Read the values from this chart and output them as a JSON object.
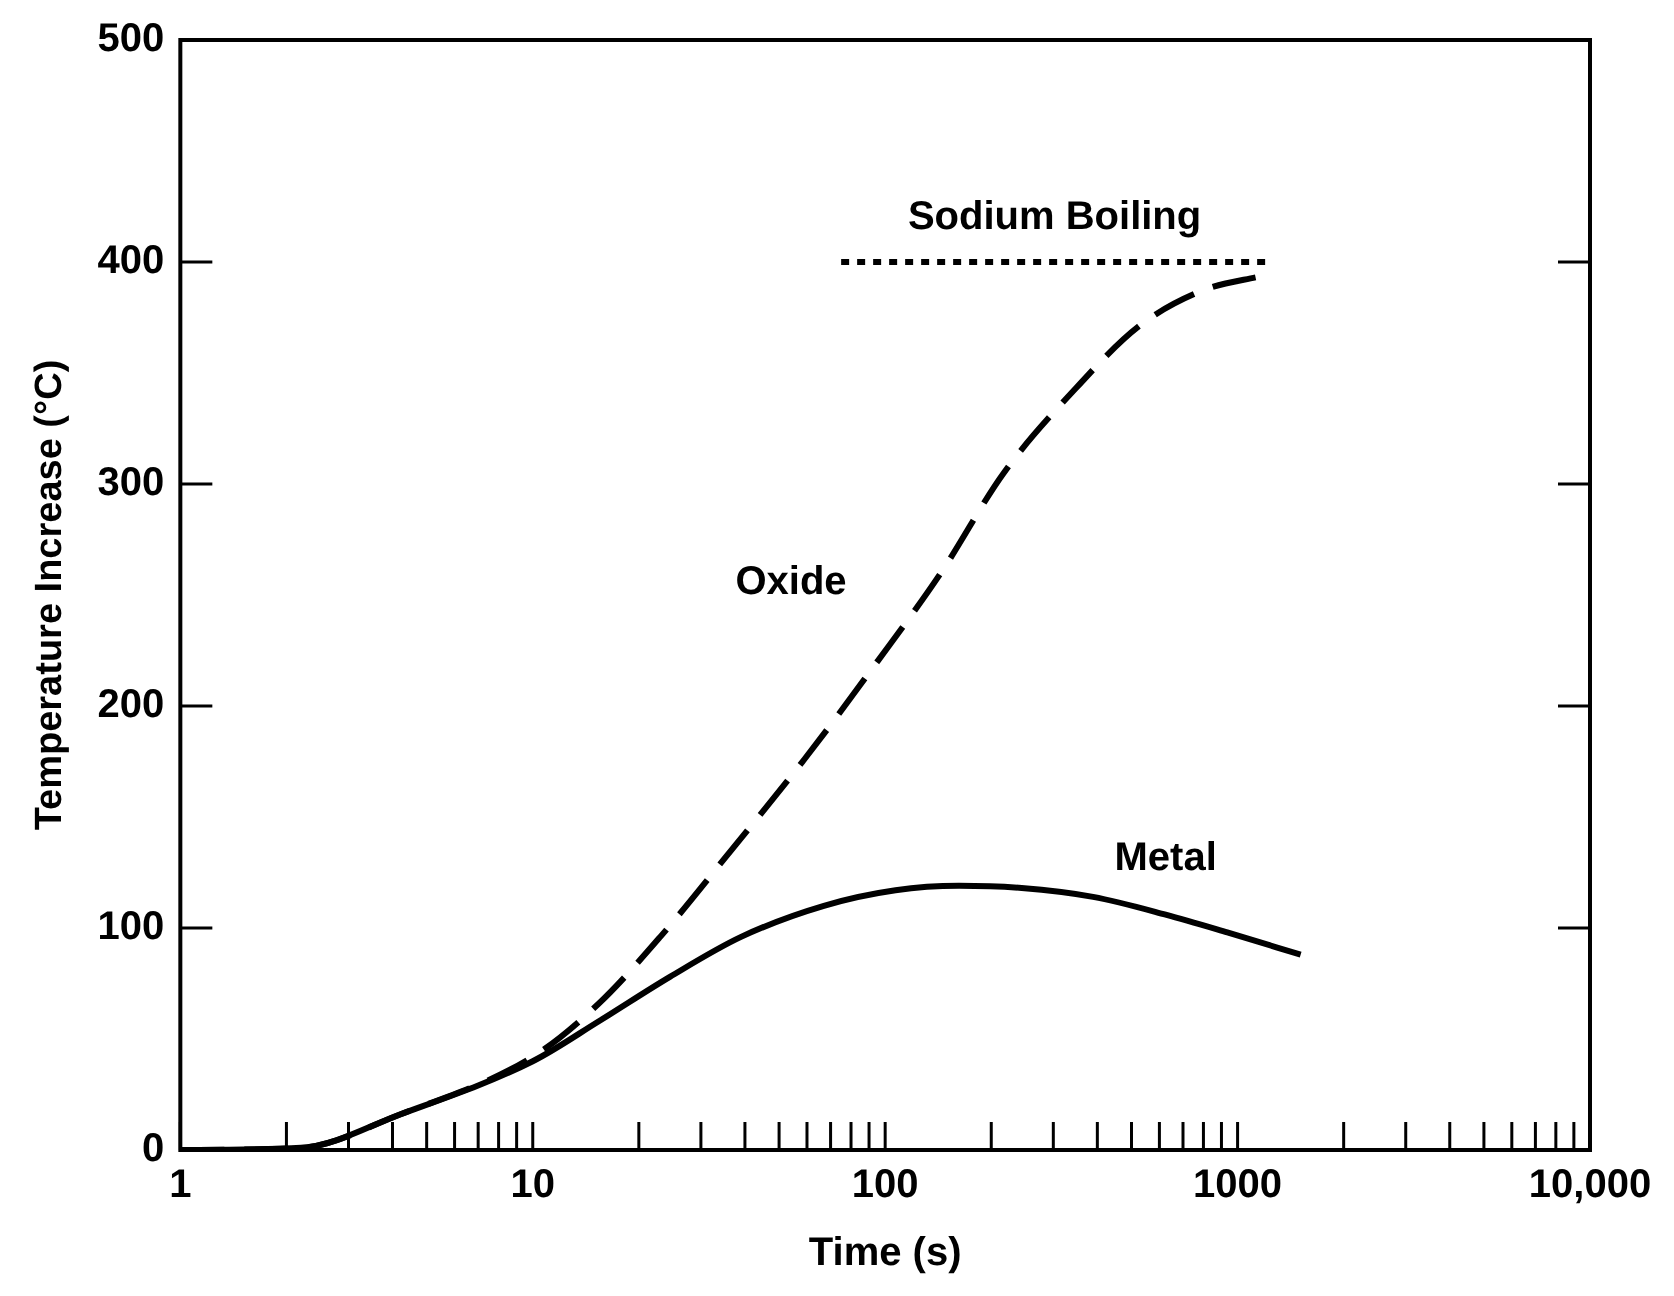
{
  "chart_data": {
    "type": "line",
    "xlabel": "Time (s)",
    "ylabel": "Temperature Increase (°C)",
    "log": "x",
    "grid": false,
    "legend": false,
    "marker": "none",
    "xlim": [
      1,
      10000
    ],
    "ylim": [
      0,
      500
    ],
    "xticks": [
      1,
      {
        "value": 2,
        "label": null
      },
      {
        "value": 3,
        "label": null
      },
      {
        "value": 4,
        "label": null
      },
      {
        "value": 5,
        "label": null
      },
      {
        "value": 6,
        "label": null
      },
      {
        "value": 7,
        "label": null
      },
      {
        "value": 8,
        "label": null
      },
      {
        "value": 9,
        "label": null
      },
      10,
      {
        "value": 20,
        "label": null
      },
      {
        "value": 30,
        "label": null
      },
      {
        "value": 40,
        "label": null
      },
      {
        "value": 50,
        "label": null
      },
      {
        "value": 60,
        "label": null
      },
      {
        "value": 70,
        "label": null
      },
      {
        "value": 80,
        "label": null
      },
      {
        "value": 90,
        "label": null
      },
      100,
      {
        "value": 200,
        "label": null
      },
      {
        "value": 300,
        "label": null
      },
      {
        "value": 400,
        "label": null
      },
      {
        "value": 500,
        "label": null
      },
      {
        "value": 600,
        "label": null
      },
      {
        "value": 700,
        "label": null
      },
      {
        "value": 800,
        "label": null
      },
      {
        "value": 900,
        "label": null
      },
      1000,
      {
        "value": 2000,
        "label": null
      },
      {
        "value": 3000,
        "label": null
      },
      {
        "value": 4000,
        "label": null
      },
      {
        "value": 5000,
        "label": null
      },
      {
        "value": 6000,
        "label": null
      },
      {
        "value": 7000,
        "label": null
      },
      {
        "value": 8000,
        "label": null
      },
      {
        "value": 9000,
        "label": null
      },
      {
        "value": 10000,
        "label": "10,000"
      }
    ],
    "yticks": [
      0,
      100,
      200,
      300,
      400,
      500
    ],
    "series": [
      {
        "name": "Oxide",
        "color": "#000000",
        "line_style": "dashed",
        "x": [
          1,
          2.2,
          4.2,
          10,
          15.4,
          23,
          37,
          59,
          95,
          144,
          217,
          347,
          524,
          790,
          1194
        ],
        "values": [
          0,
          1,
          16,
          42,
          66,
          96,
          136,
          176,
          220,
          260,
          305,
          343,
          371,
          387,
          394
        ]
      },
      {
        "name": "Metal",
        "color": "#000000",
        "line_style": "solid",
        "x": [
          1,
          2.2,
          4.2,
          10,
          15.4,
          24.5,
          39,
          67,
          107,
          162,
          244,
          389,
          625,
          935,
          1510
        ],
        "values": [
          0,
          1,
          16,
          40,
          58,
          78,
          96,
          110,
          117,
          119,
          118,
          114,
          106,
          98,
          88
        ]
      },
      {
        "name": "Sodium Boiling",
        "color": "#000000",
        "line_style": "dotted",
        "x": [
          75,
          1220
        ],
        "values": [
          400,
          400
        ]
      }
    ]
  }
}
